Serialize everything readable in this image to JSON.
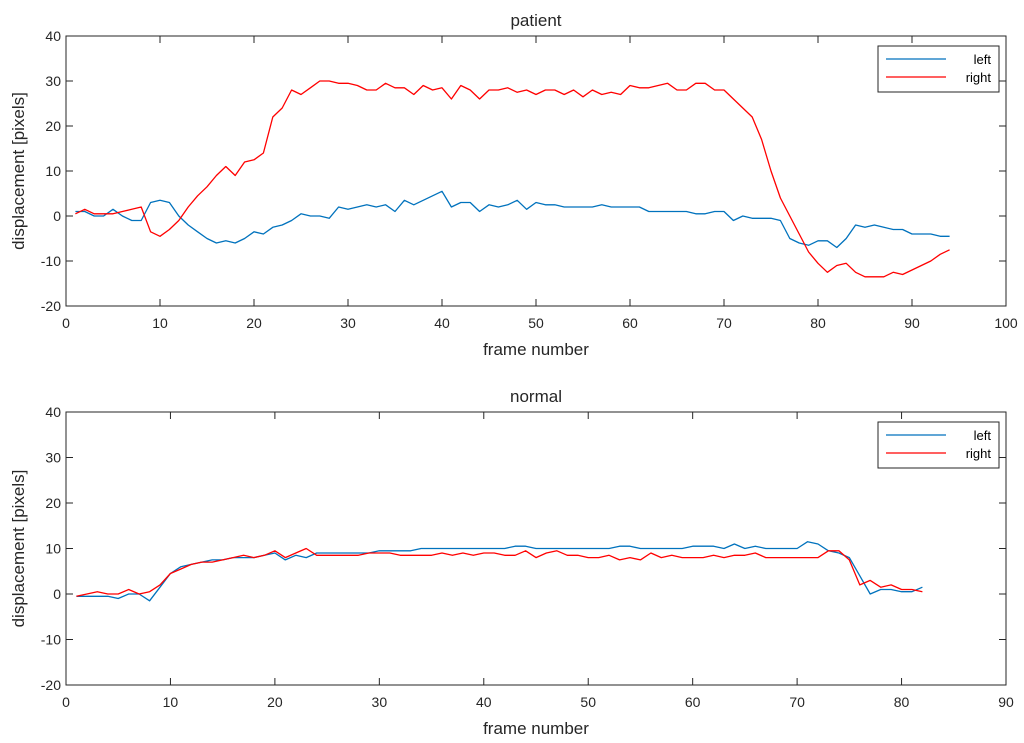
{
  "chart_data": [
    {
      "type": "line",
      "title": "patient",
      "xlabel": "frame number",
      "ylabel": "displacement [pixels]",
      "xlim": [
        0,
        100
      ],
      "ylim": [
        -20,
        40
      ],
      "xticks": [
        0,
        10,
        20,
        30,
        40,
        50,
        60,
        70,
        80,
        90,
        100
      ],
      "yticks": [
        -20,
        -10,
        0,
        10,
        20,
        30,
        40
      ],
      "xtick_labels": [
        "0",
        "10",
        "20",
        "30",
        "40",
        "50",
        "60",
        "70",
        "80",
        "90",
        "100"
      ],
      "ytick_labels": [
        "-20",
        "-10",
        "0",
        "10",
        "20",
        "30",
        "40"
      ],
      "grid": false,
      "legend_position": "top-right",
      "series": [
        {
          "name": "left",
          "color": "#0072bd",
          "x": [
            1,
            2,
            3,
            4,
            5,
            6,
            7,
            8,
            9,
            10,
            11,
            12,
            13,
            14,
            15,
            16,
            17,
            18,
            19,
            20,
            21,
            22,
            23,
            24,
            25,
            26,
            27,
            28,
            29,
            30,
            31,
            32,
            33,
            34,
            35,
            36,
            37,
            38,
            39,
            40,
            41,
            42,
            43,
            44,
            45,
            46,
            47,
            48,
            49,
            50,
            51,
            52,
            53,
            54,
            55,
            56,
            57,
            58,
            59,
            60,
            61,
            62,
            63,
            64,
            65,
            66,
            67,
            68,
            69,
            70,
            71,
            72,
            73,
            74,
            75,
            76,
            77,
            78,
            79,
            80,
            81,
            82,
            83,
            84,
            85,
            86,
            87,
            88,
            89,
            90,
            91,
            92,
            93,
            94
          ],
          "y": [
            1,
            1,
            0,
            0,
            1.5,
            0,
            -1,
            -1,
            3,
            3.5,
            3,
            0,
            -2,
            -3.5,
            -5,
            -6,
            -5.5,
            -6,
            -5,
            -3.5,
            -4,
            -2.5,
            -2,
            -1,
            0.5,
            0,
            0,
            -0.5,
            2,
            1.5,
            2,
            2.5,
            2,
            2.5,
            1,
            3.5,
            2.5,
            3.5,
            4.5,
            5.5,
            2,
            3,
            3,
            1,
            2.5,
            2,
            2.5,
            3.5,
            1.5,
            3,
            2.5,
            2.5,
            2,
            2,
            2,
            2,
            2.5,
            2,
            2,
            2,
            2,
            1,
            1,
            1,
            1,
            1,
            0.5,
            0.5,
            1,
            1,
            -1,
            0,
            -0.5,
            -0.5,
            -0.5,
            -1,
            -5,
            -6,
            -6.5,
            -5.5,
            -5.5,
            -7,
            -5,
            -2,
            -2.5,
            -2,
            -2.5,
            -3,
            -3,
            -4,
            -4,
            -4,
            -4.5,
            -4.5
          ]
        },
        {
          "name": "right",
          "color": "#ff0000",
          "x": [
            1,
            2,
            3,
            4,
            5,
            6,
            7,
            8,
            9,
            10,
            11,
            12,
            13,
            14,
            15,
            16,
            17,
            18,
            19,
            20,
            21,
            22,
            23,
            24,
            25,
            26,
            27,
            28,
            29,
            30,
            31,
            32,
            33,
            34,
            35,
            36,
            37,
            38,
            39,
            40,
            41,
            42,
            43,
            44,
            45,
            46,
            47,
            48,
            49,
            50,
            51,
            52,
            53,
            54,
            55,
            56,
            57,
            58,
            59,
            60,
            61,
            62,
            63,
            64,
            65,
            66,
            67,
            68,
            69,
            70,
            71,
            72,
            73,
            74,
            75,
            76,
            77,
            78,
            79,
            80,
            81,
            82,
            83,
            84,
            85,
            86,
            87,
            88,
            89,
            90,
            91,
            92,
            93,
            94
          ],
          "y": [
            0.5,
            1.5,
            0.5,
            0.5,
            0.5,
            1,
            1.5,
            2,
            -3.5,
            -4.5,
            -3,
            -1,
            2,
            4.5,
            6.5,
            9,
            11,
            9,
            12,
            12.5,
            14,
            22,
            24,
            28,
            27,
            28.5,
            30,
            30,
            29.5,
            29.5,
            29,
            28,
            28,
            29.5,
            28.5,
            28.5,
            27,
            29,
            28,
            28.5,
            26,
            29,
            28,
            26,
            28,
            28,
            28.5,
            27.5,
            28,
            27,
            28,
            28,
            27,
            28,
            26.5,
            28,
            27,
            27.5,
            27,
            29,
            28.5,
            28.5,
            29,
            29.5,
            28,
            28,
            29.5,
            29.5,
            28,
            28,
            26,
            24,
            22,
            17,
            10,
            4,
            0,
            -4,
            -8,
            -10.5,
            -12.5,
            -11,
            -10.5,
            -12.5,
            -13.5,
            -13.5,
            -13.5,
            -12.5,
            -13,
            -12,
            -11,
            -10,
            -8.5,
            -7.5
          ]
        }
      ]
    },
    {
      "type": "line",
      "title": "normal",
      "xlabel": "frame number",
      "ylabel": "displacement [pixels]",
      "xlim": [
        0,
        90
      ],
      "ylim": [
        -20,
        40
      ],
      "xticks": [
        0,
        10,
        20,
        30,
        40,
        50,
        60,
        70,
        80,
        90
      ],
      "yticks": [
        -20,
        -10,
        0,
        10,
        20,
        30,
        40
      ],
      "xtick_labels": [
        "0",
        "10",
        "20",
        "30",
        "40",
        "50",
        "60",
        "70",
        "80",
        "90"
      ],
      "ytick_labels": [
        "-20",
        "-10",
        "0",
        "10",
        "20",
        "30",
        "40"
      ],
      "grid": false,
      "legend_position": "top-right",
      "series": [
        {
          "name": "left",
          "color": "#0072bd",
          "x": [
            1,
            2,
            3,
            4,
            5,
            6,
            7,
            8,
            9,
            10,
            11,
            12,
            13,
            14,
            15,
            16,
            17,
            18,
            19,
            20,
            21,
            22,
            23,
            24,
            25,
            26,
            27,
            28,
            29,
            30,
            31,
            32,
            33,
            34,
            35,
            36,
            37,
            38,
            39,
            40,
            41,
            42,
            43,
            44,
            45,
            46,
            47,
            48,
            49,
            50,
            51,
            52,
            53,
            54,
            55,
            56,
            57,
            58,
            59,
            60,
            61,
            62,
            63,
            64,
            65,
            66,
            67,
            68,
            69,
            70,
            71,
            72,
            73,
            74,
            75,
            76,
            77,
            78,
            79,
            80,
            81,
            82
          ],
          "y": [
            -0.5,
            -0.5,
            -0.5,
            -0.5,
            -1,
            0,
            0,
            -1.5,
            1.5,
            4.5,
            6,
            6.5,
            7,
            7.5,
            7.5,
            8,
            8,
            8,
            8.5,
            9,
            7.5,
            8.5,
            8,
            9,
            9,
            9,
            9,
            9,
            9,
            9.5,
            9.5,
            9.5,
            9.5,
            10,
            10,
            10,
            10,
            10,
            10,
            10,
            10,
            10,
            10.5,
            10.5,
            10,
            10,
            10,
            10,
            10,
            10,
            10,
            10,
            10.5,
            10.5,
            10,
            10,
            10,
            10,
            10,
            10.5,
            10.5,
            10.5,
            10,
            11,
            10,
            10.5,
            10,
            10,
            10,
            10,
            11.5,
            11,
            9.5,
            9,
            8,
            4,
            0,
            1,
            1,
            0.5,
            0.5,
            1.5
          ]
        },
        {
          "name": "right",
          "color": "#ff0000",
          "x": [
            1,
            2,
            3,
            4,
            5,
            6,
            7,
            8,
            9,
            10,
            11,
            12,
            13,
            14,
            15,
            16,
            17,
            18,
            19,
            20,
            21,
            22,
            23,
            24,
            25,
            26,
            27,
            28,
            29,
            30,
            31,
            32,
            33,
            34,
            35,
            36,
            37,
            38,
            39,
            40,
            41,
            42,
            43,
            44,
            45,
            46,
            47,
            48,
            49,
            50,
            51,
            52,
            53,
            54,
            55,
            56,
            57,
            58,
            59,
            60,
            61,
            62,
            63,
            64,
            65,
            66,
            67,
            68,
            69,
            70,
            71,
            72,
            73,
            74,
            75,
            76,
            77,
            78,
            79,
            80,
            81,
            82
          ],
          "y": [
            -0.5,
            0,
            0.5,
            0,
            0,
            1,
            0,
            0.5,
            2,
            4.5,
            5.5,
            6.5,
            7,
            7,
            7.5,
            8,
            8.5,
            8,
            8.5,
            9.5,
            8,
            9,
            10,
            8.5,
            8.5,
            8.5,
            8.5,
            8.5,
            9,
            9,
            9,
            8.5,
            8.5,
            8.5,
            8.5,
            9,
            8.5,
            9,
            8.5,
            9,
            9,
            8.5,
            8.5,
            9.5,
            8,
            9,
            9.5,
            8.5,
            8.5,
            8,
            8,
            8.5,
            7.5,
            8,
            7.5,
            9,
            8,
            8.5,
            8,
            8,
            8,
            8.5,
            8,
            8.5,
            8.5,
            9,
            8,
            8,
            8,
            8,
            8,
            8,
            9.5,
            9.5,
            7.5,
            2,
            3,
            1.5,
            2,
            1,
            1,
            0.5
          ]
        }
      ]
    }
  ]
}
